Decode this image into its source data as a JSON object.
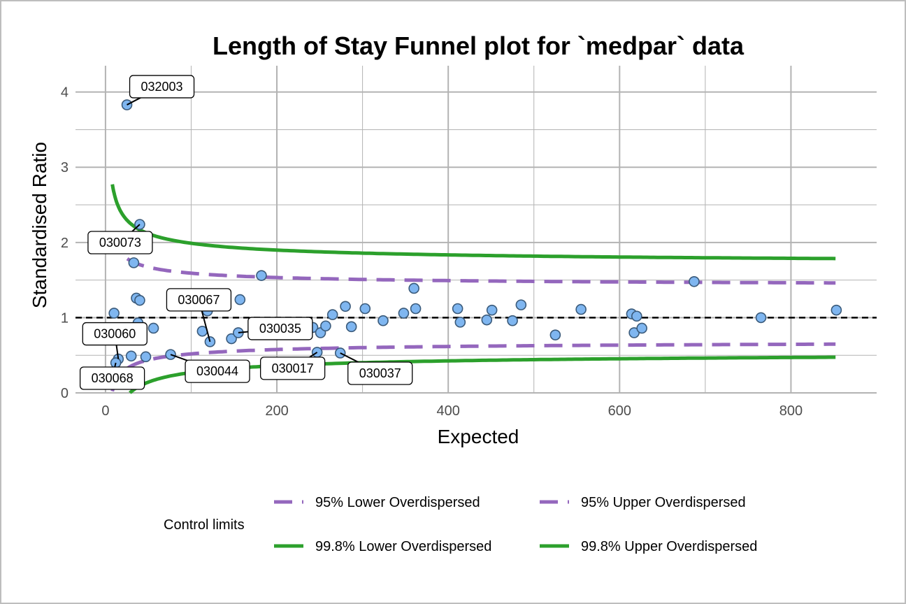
{
  "chart_data": {
    "type": "scatter",
    "title": "Length of Stay Funnel plot for `medpar` data",
    "xlabel": "Expected",
    "ylabel": "Standardised Ratio",
    "xlim": [
      -35,
      900
    ],
    "ylim": [
      0,
      4.35
    ],
    "x_ticks": [
      0,
      200,
      400,
      600,
      800
    ],
    "y_ticks": [
      0,
      1,
      2,
      3,
      4
    ],
    "grid": true,
    "target_line": 1,
    "points": [
      {
        "x": 25,
        "y": 3.83,
        "label": "032003"
      },
      {
        "x": 40,
        "y": 2.24,
        "label": "030073"
      },
      {
        "x": 33,
        "y": 1.73
      },
      {
        "x": 36,
        "y": 1.26
      },
      {
        "x": 40,
        "y": 1.23
      },
      {
        "x": 10,
        "y": 1.06
      },
      {
        "x": 38,
        "y": 0.93
      },
      {
        "x": 56,
        "y": 0.86
      },
      {
        "x": 30,
        "y": 0.49
      },
      {
        "x": 47,
        "y": 0.48
      },
      {
        "x": 15,
        "y": 0.45,
        "label": "030060"
      },
      {
        "x": 12,
        "y": 0.4,
        "label": "030068"
      },
      {
        "x": 76,
        "y": 0.51,
        "label": "030044"
      },
      {
        "x": 113,
        "y": 0.82
      },
      {
        "x": 119,
        "y": 1.09
      },
      {
        "x": 122,
        "y": 0.68,
        "label": "030067"
      },
      {
        "x": 147,
        "y": 0.72
      },
      {
        "x": 155,
        "y": 0.8,
        "label": "030035"
      },
      {
        "x": 157,
        "y": 1.24
      },
      {
        "x": 182,
        "y": 1.56
      },
      {
        "x": 188,
        "y": 0.93
      },
      {
        "x": 242,
        "y": 0.87
      },
      {
        "x": 247,
        "y": 0.54,
        "label": "030017"
      },
      {
        "x": 251,
        "y": 0.8
      },
      {
        "x": 257,
        "y": 0.89
      },
      {
        "x": 265,
        "y": 1.04
      },
      {
        "x": 274,
        "y": 0.53,
        "label": "030037"
      },
      {
        "x": 280,
        "y": 1.15
      },
      {
        "x": 287,
        "y": 0.88
      },
      {
        "x": 303,
        "y": 1.12
      },
      {
        "x": 324,
        "y": 0.96
      },
      {
        "x": 348,
        "y": 1.06
      },
      {
        "x": 360,
        "y": 1.39
      },
      {
        "x": 362,
        "y": 1.12
      },
      {
        "x": 411,
        "y": 1.12
      },
      {
        "x": 414,
        "y": 0.94
      },
      {
        "x": 445,
        "y": 0.97
      },
      {
        "x": 451,
        "y": 1.1
      },
      {
        "x": 475,
        "y": 0.96
      },
      {
        "x": 485,
        "y": 1.17
      },
      {
        "x": 525,
        "y": 0.77
      },
      {
        "x": 555,
        "y": 1.11
      },
      {
        "x": 614,
        "y": 1.05
      },
      {
        "x": 617,
        "y": 0.8
      },
      {
        "x": 620,
        "y": 1.02
      },
      {
        "x": 626,
        "y": 0.86
      },
      {
        "x": 687,
        "y": 1.48
      },
      {
        "x": 765,
        "y": 1.0
      },
      {
        "x": 853,
        "y": 1.1
      }
    ],
    "limits": [
      {
        "name": "95% Lower Overdispersed",
        "color": "#9467bd",
        "style": "dashed",
        "side": "lower",
        "z": 1.96,
        "asymptote": 0.715
      },
      {
        "name": "95% Upper Overdispersed",
        "color": "#9467bd",
        "style": "dashed",
        "side": "upper",
        "z": 1.96,
        "asymptote": 1.395
      },
      {
        "name": "99.8% Lower Overdispersed",
        "color": "#2ca02c",
        "style": "solid",
        "side": "lower",
        "z": 3.09,
        "asymptote": 0.58
      },
      {
        "name": "99.8% Upper Overdispersed",
        "color": "#2ca02c",
        "style": "solid",
        "side": "upper",
        "z": 3.09,
        "asymptote": 1.68
      }
    ],
    "legend": {
      "title": "Control limits",
      "position": "bottom",
      "items": [
        "95% Lower Overdispersed",
        "95% Upper Overdispersed",
        "99.8% Lower Overdispersed",
        "99.8% Upper Overdispersed"
      ]
    },
    "colors": {
      "point_fill": "#7fb6f0",
      "point_stroke": "#3a5a7a",
      "target": "#000000",
      "grid": "#b3b3b3"
    }
  }
}
